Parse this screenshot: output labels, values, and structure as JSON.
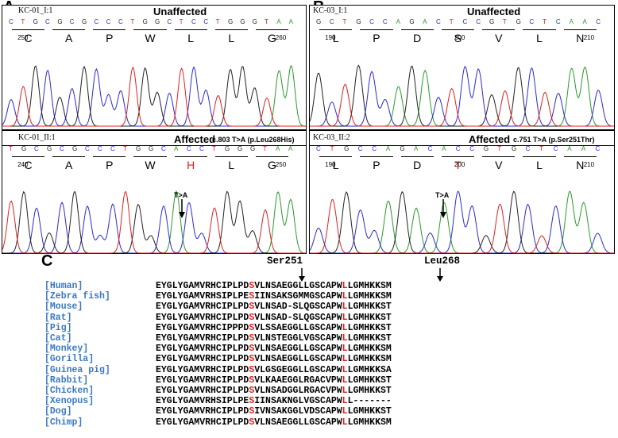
{
  "panels": [
    {
      "letter": "A",
      "top_id": "KC-01_I:1",
      "top_status": "Unaffected",
      "top_bases": [
        "C",
        "T",
        "G",
        "C",
        "G",
        "C",
        "G",
        "C",
        "C",
        "C",
        "T",
        "G",
        "G",
        "C",
        "T",
        "C",
        "C",
        "T",
        "G",
        "G",
        "G",
        "T",
        "A",
        "A"
      ],
      "top_aa": [
        "C",
        "A",
        "P",
        "W",
        "L",
        "L",
        "G"
      ],
      "top_pos": [
        "250",
        "260"
      ],
      "bot_id": "KC-01_II:1",
      "bot_status": "Affected",
      "bot_note": "c.803 T>A (p.Leu268His)",
      "bot_bases": [
        "T",
        "G",
        "C",
        "G",
        "C",
        "G",
        "C",
        "C",
        "C",
        "T",
        "G",
        "G",
        "C",
        "A",
        "C",
        "C",
        "T",
        "G",
        "G",
        "G",
        "T",
        "A",
        "A"
      ],
      "bot_aa": [
        "C",
        "A",
        "P",
        "W",
        "H",
        "L",
        "G"
      ],
      "bot_pos": [
        "240",
        "250"
      ],
      "arrow": "T>A"
    },
    {
      "letter": "B",
      "top_id": "KC-03_I:1",
      "top_status": "Unaffected",
      "top_bases": [
        "G",
        "C",
        "T",
        "G",
        "C",
        "C",
        "A",
        "G",
        "A",
        "C",
        "T",
        "C",
        "C",
        "G",
        "T",
        "G",
        "C",
        "T",
        "C",
        "A",
        "A",
        "C"
      ],
      "top_aa": [
        "L",
        "P",
        "D",
        "S",
        "V",
        "L",
        "N"
      ],
      "top_pos": [
        "190",
        "200",
        "210"
      ],
      "bot_id": "KC-03_II:2",
      "bot_status": "Affected",
      "bot_note": "c.751 T>A (p.Ser251Thr)",
      "bot_bases": [
        "C",
        "T",
        "G",
        "C",
        "C",
        "A",
        "G",
        "A",
        "C",
        "A",
        "C",
        "C",
        "G",
        "T",
        "G",
        "C",
        "T",
        "C",
        "A",
        "A",
        "C"
      ],
      "bot_aa": [
        "L",
        "P",
        "D",
        "T",
        "V",
        "L",
        "N"
      ],
      "bot_pos": [
        "190",
        "200",
        "210"
      ],
      "arrow": "T>A"
    }
  ],
  "alignment": {
    "letter": "C",
    "site1": "Ser251",
    "site2": "Leu268",
    "rows": [
      {
        "species": "[Human]",
        "pre": "EYGLYGAMVRHCIPLPD",
        "s1": "S",
        "mid": "VLNSAEGGLLGSCAPW",
        "s2": "L",
        "post": "LGMHKKSM"
      },
      {
        "species": "[Zebra fish]",
        "pre": "EYGLYGAMVRHSIPLPE",
        "s1": "S",
        "mid": "IINSAKSGMMGSCAPW",
        "s2": "L",
        "post": "LGMHKKSM"
      },
      {
        "species": "[Mouse]",
        "pre": "EYGLYGAMVRHCIPLPD",
        "s1": "S",
        "mid": "VLNSAD-SLQGSCAPW",
        "s2": "L",
        "post": "LGMHKKST"
      },
      {
        "species": "[Rat]",
        "pre": "EYGLYGAMVRHCIPLPD",
        "s1": "S",
        "mid": "VLNSAD-SLQGSCAPW",
        "s2": "L",
        "post": "LGMHKKST"
      },
      {
        "species": "[Pig]",
        "pre": "EYGLYGAMVRHCIPPPD",
        "s1": "S",
        "mid": "VLSSAEGGLLGSCAPW",
        "s2": "L",
        "post": "LGMHKKST"
      },
      {
        "species": "[Cat]",
        "pre": "EYGLYGAMVRHCIPLPD",
        "s1": "S",
        "mid": "VLNSTEGGLVGSCAPW",
        "s2": "L",
        "post": "LGMHKKST"
      },
      {
        "species": "[Monkey]",
        "pre": "EYGLYGAMVRHCIPLPD",
        "s1": "S",
        "mid": "VLNSAEGGLLGSCAPW",
        "s2": "L",
        "post": "LGMHKKSM"
      },
      {
        "species": "[Gorilla]",
        "pre": "EYGLYGAMVRHCIPLPD",
        "s1": "S",
        "mid": "VLNSAEGGLLGSCAPW",
        "s2": "L",
        "post": "LGMHKKSM"
      },
      {
        "species": "[Guinea pig]",
        "pre": "EYGLYGAMVRHCIPLPD",
        "s1": "S",
        "mid": "VLGSGEGGLLGSCAPW",
        "s2": "L",
        "post": "LGMHKKSA"
      },
      {
        "species": "[Rabbit]",
        "pre": "EYGLYGAMVRHCIPLPD",
        "s1": "S",
        "mid": "VLKAAEGGLRGACVPW",
        "s2": "L",
        "post": "LGMHKKST"
      },
      {
        "species": "[Chicken]",
        "pre": "EYGLYGAMVRHCIPLPD",
        "s1": "S",
        "mid": "VLNSADGGLRGACVPW",
        "s2": "L",
        "post": "LGMHKKST"
      },
      {
        "species": "[Xenopus]",
        "pre": "EYGLYGAMVRHSIPLPE",
        "s1": "S",
        "mid": "IINSAKNGLVGSCAPW",
        "s2": "L",
        "post": "L-------"
      },
      {
        "species": "[Dog]",
        "pre": "EYGLYGAMVRHCIPLPD",
        "s1": "S",
        "mid": "IVNSAKGGLVDSCAPW",
        "s2": "L",
        "post": "LGMHKKST"
      },
      {
        "species": "[Chimp]",
        "pre": "EYGLYGAMVRHCIPLPD",
        "s1": "S",
        "mid": "VLNSAEGGLLGSCAPW",
        "s2": "L",
        "post": "LGMHKKSM"
      }
    ]
  },
  "colors": {
    "A": "#2a9a2a",
    "C": "#2a2ad8",
    "G": "#222222",
    "T": "#e02020",
    "highlight": "#e02020",
    "species": "#3a78c2"
  }
}
